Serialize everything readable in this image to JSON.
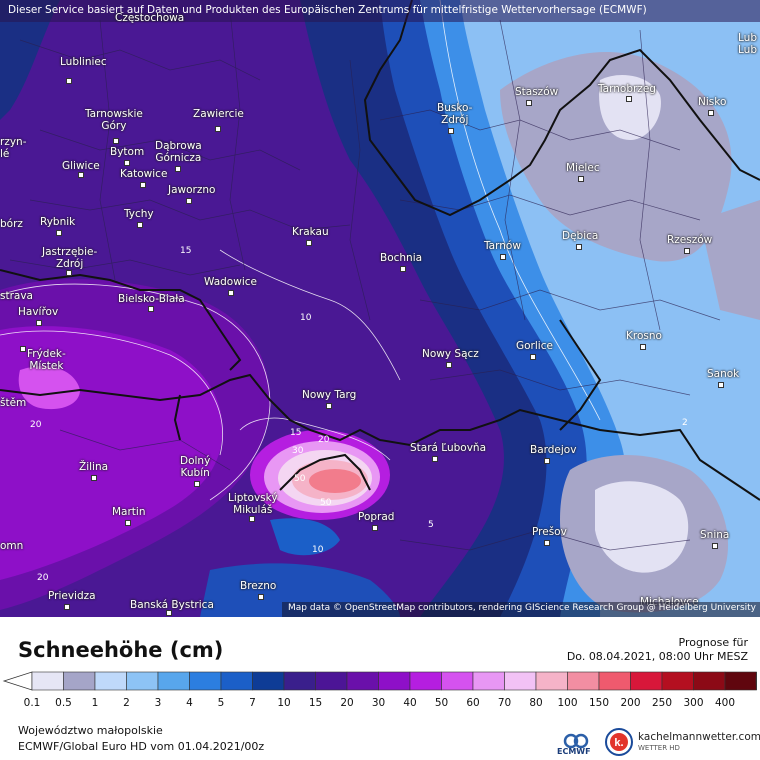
{
  "header": {
    "notice": "Dieser Service basiert auf Daten und Produkten des Europäischen Zentrums für mittelfristige Wettervorhersage (ECMWF)"
  },
  "map": {
    "attribution": "Map data © OpenStreetMap contributors, rendering GIScience Research Group @ Heidelberg University",
    "cities": [
      {
        "name": "Częstochowa"
      },
      {
        "name": "Lubliniec"
      },
      {
        "name": "Tarnowskie\nGóry"
      },
      {
        "name": "Zawiercie"
      },
      {
        "name": "Bytom"
      },
      {
        "name": "Dąbrowa\nGórnicza"
      },
      {
        "name": "Gliwice"
      },
      {
        "name": "Katowice"
      },
      {
        "name": "Jaworzno"
      },
      {
        "name": "Tychy"
      },
      {
        "name": "Rybnik"
      },
      {
        "name": "Jastrzębie-\nZdrój"
      },
      {
        "name": "Bielsko-Biała"
      },
      {
        "name": "Wadowice"
      },
      {
        "name": "Krakau"
      },
      {
        "name": "Bochnia"
      },
      {
        "name": "Busko-\nZdrój"
      },
      {
        "name": "Staszów"
      },
      {
        "name": "Tarnobrzeg"
      },
      {
        "name": "Nisko"
      },
      {
        "name": "Mielec"
      },
      {
        "name": "Tarnów"
      },
      {
        "name": "Dębica"
      },
      {
        "name": "Rzeszów"
      },
      {
        "name": "Nowy Sącz"
      },
      {
        "name": "Gorlice"
      },
      {
        "name": "Krosno"
      },
      {
        "name": "Sanok"
      },
      {
        "name": "Nowy Targ"
      },
      {
        "name": "Stará Ľubovňa"
      },
      {
        "name": "Bardejov"
      },
      {
        "name": "Poprad"
      },
      {
        "name": "Prešov"
      },
      {
        "name": "Snina"
      },
      {
        "name": "Žilina"
      },
      {
        "name": "Dolný\nKubín"
      },
      {
        "name": "Martin"
      },
      {
        "name": "Liptovský\nMikuláš"
      },
      {
        "name": "Brezno"
      },
      {
        "name": "Prievidza"
      },
      {
        "name": "Banská Bystrica"
      },
      {
        "name": "Havířov"
      },
      {
        "name": "Frýdek-\nMístek"
      },
      {
        "name": "strava"
      },
      {
        "name": "štěm"
      },
      {
        "name": "rzyn-\nlé"
      },
      {
        "name": "bórz"
      },
      {
        "name": "Lub\nLub"
      },
      {
        "name": "Michalovce"
      },
      {
        "name": "omn"
      }
    ],
    "contour_labels": [
      "10",
      "15",
      "20",
      "30",
      "50",
      "50",
      "10",
      "5",
      "2",
      "20",
      "15",
      "20"
    ]
  },
  "panel": {
    "title": "Schneehöhe (cm)",
    "forecast_label": "Prognose für",
    "forecast_time": "Do. 08.04.2021, 08:00 Uhr MESZ",
    "region": "Województwo małopolskie",
    "model": "ECMWF/Global Euro HD vom  01.04.2021/00z",
    "ecmwf_logo_text": "ECMWF",
    "brand": "kachelmannwetter.com",
    "brand_sub": "WETTER HD"
  },
  "legend": {
    "ticks": [
      "0.1",
      "0.5",
      "1",
      "2",
      "3",
      "4",
      "5",
      "7",
      "10",
      "15",
      "20",
      "30",
      "40",
      "50",
      "60",
      "70",
      "80",
      "100",
      "150",
      "200",
      "250",
      "300",
      "400"
    ],
    "colors": [
      "#e6e6f5",
      "#a5a5c8",
      "#bfd9fa",
      "#8dc3f5",
      "#58a6ec",
      "#2c7ee0",
      "#1b5fc8",
      "#0e3c96",
      "#3a1f8c",
      "#4c1596",
      "#6a10aa",
      "#8e10c8",
      "#b51ee0",
      "#d552ef",
      "#e897f4",
      "#f2c2f5",
      "#f5b3c8",
      "#f28ea2",
      "#ef5a6e",
      "#d8173a",
      "#b40f20",
      "#8c0a16",
      "#60060e"
    ]
  }
}
